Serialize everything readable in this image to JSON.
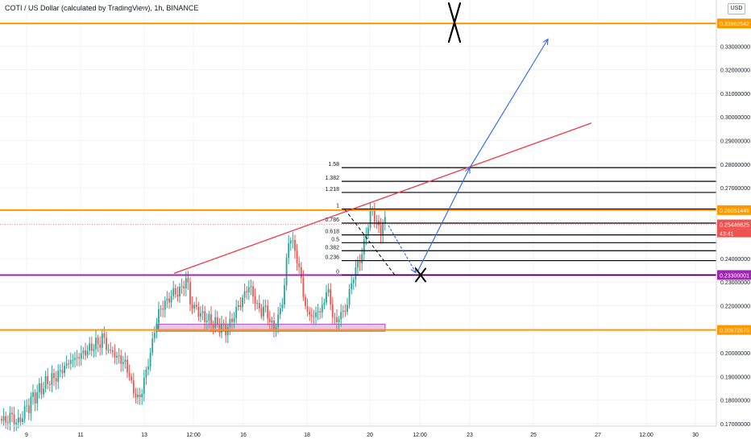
{
  "header": {
    "symbol_title": "COTI / US Dollar (calculated by TradingView), 1h, BINANCE",
    "currency_button": "USD"
  },
  "colors": {
    "up_candle": "#26a69a",
    "down_candle": "#ef5350",
    "support_orange": "#ff9800",
    "level_purple": "#9c27b0",
    "zone_fill": "#e1bee7",
    "trend_red": "#f23645",
    "arrow_blue": "#2962ff",
    "fib_black": "#000000"
  },
  "chart_data": {
    "type": "candlestick",
    "title": "COTI / US Dollar (calculated by TradingView), 1h, BINANCE",
    "xlabel": "",
    "ylabel": "",
    "ylim": [
      0.168,
      0.345
    ],
    "x_ticks": [
      "9",
      "11",
      "13",
      "12:00",
      "16",
      "18",
      "20",
      "12:00",
      "23",
      "25",
      "27",
      "12:00",
      "30"
    ],
    "y_ticks": [
      0.17,
      0.18,
      0.19,
      0.2,
      0.22,
      0.23,
      0.24,
      0.27,
      0.28,
      0.29,
      0.3,
      0.31,
      0.32,
      0.33
    ],
    "y_tick_labels": [
      "0.17000000",
      "0.18000000",
      "0.19000000",
      "0.20000000",
      "0.22000000",
      "0.23000000",
      "0.24000000",
      "0.27000000",
      "0.28000000",
      "0.29000000",
      "0.30000000",
      "0.31000000",
      "0.32000000",
      "0.33000000"
    ],
    "close_path": [
      [
        0,
        0.172
      ],
      [
        8,
        0.171
      ],
      [
        14,
        0.174
      ],
      [
        20,
        0.17
      ],
      [
        28,
        0.173
      ],
      [
        33,
        0.178
      ],
      [
        36,
        0.176
      ],
      [
        40,
        0.183
      ],
      [
        44,
        0.18
      ],
      [
        48,
        0.186
      ],
      [
        52,
        0.183
      ],
      [
        56,
        0.189
      ],
      [
        60,
        0.186
      ],
      [
        64,
        0.191
      ],
      [
        68,
        0.187
      ],
      [
        72,
        0.193
      ],
      [
        76,
        0.19
      ],
      [
        80,
        0.196
      ],
      [
        84,
        0.193
      ],
      [
        88,
        0.199
      ],
      [
        92,
        0.195
      ],
      [
        96,
        0.2
      ],
      [
        100,
        0.197
      ],
      [
        104,
        0.202
      ],
      [
        108,
        0.199
      ],
      [
        112,
        0.204
      ],
      [
        116,
        0.201
      ],
      [
        120,
        0.206
      ],
      [
        124,
        0.203
      ],
      [
        128,
        0.208
      ],
      [
        132,
        0.203
      ],
      [
        136,
        0.199
      ],
      [
        140,
        0.202
      ],
      [
        144,
        0.196
      ],
      [
        148,
        0.2
      ],
      [
        152,
        0.194
      ],
      [
        156,
        0.197
      ],
      [
        160,
        0.19
      ],
      [
        164,
        0.186
      ],
      [
        168,
        0.182
      ],
      [
        172,
        0.18
      ],
      [
        176,
        0.184
      ],
      [
        180,
        0.19
      ],
      [
        184,
        0.196
      ],
      [
        188,
        0.202
      ],
      [
        192,
        0.21
      ],
      [
        196,
        0.216
      ],
      [
        200,
        0.219
      ],
      [
        204,
        0.221
      ],
      [
        208,
        0.222
      ],
      [
        212,
        0.224
      ],
      [
        216,
        0.226
      ],
      [
        220,
        0.225
      ],
      [
        224,
        0.227
      ],
      [
        228,
        0.229
      ],
      [
        232,
        0.232
      ],
      [
        236,
        0.222
      ],
      [
        240,
        0.218
      ],
      [
        244,
        0.22
      ],
      [
        248,
        0.215
      ],
      [
        252,
        0.217
      ],
      [
        256,
        0.213
      ],
      [
        260,
        0.215
      ],
      [
        264,
        0.211
      ],
      [
        268,
        0.214
      ],
      [
        272,
        0.21
      ],
      [
        276,
        0.212
      ],
      [
        280,
        0.209
      ],
      [
        284,
        0.212
      ],
      [
        288,
        0.214
      ],
      [
        292,
        0.217
      ],
      [
        296,
        0.22
      ],
      [
        300,
        0.222
      ],
      [
        304,
        0.225
      ],
      [
        308,
        0.229
      ],
      [
        312,
        0.226
      ],
      [
        316,
        0.223
      ],
      [
        320,
        0.219
      ],
      [
        324,
        0.217
      ],
      [
        328,
        0.22
      ],
      [
        332,
        0.216
      ],
      [
        336,
        0.213
      ],
      [
        340,
        0.21
      ],
      [
        344,
        0.214
      ],
      [
        348,
        0.218
      ],
      [
        352,
        0.225
      ],
      [
        356,
        0.24
      ],
      [
        359,
        0.25
      ],
      [
        362,
        0.248
      ],
      [
        366,
        0.243
      ],
      [
        370,
        0.238
      ],
      [
        374,
        0.23
      ],
      [
        378,
        0.222
      ],
      [
        382,
        0.215
      ],
      [
        386,
        0.218
      ],
      [
        390,
        0.213
      ],
      [
        394,
        0.22
      ],
      [
        398,
        0.216
      ],
      [
        402,
        0.222
      ],
      [
        406,
        0.228
      ],
      [
        410,
        0.221
      ],
      [
        414,
        0.215
      ],
      [
        418,
        0.212
      ],
      [
        422,
        0.218
      ],
      [
        426,
        0.216
      ],
      [
        430,
        0.22
      ],
      [
        434,
        0.226
      ],
      [
        438,
        0.232
      ],
      [
        442,
        0.236
      ],
      [
        446,
        0.239
      ],
      [
        450,
        0.243
      ],
      [
        454,
        0.25
      ],
      [
        458,
        0.256
      ],
      [
        461,
        0.261
      ],
      [
        464,
        0.258
      ],
      [
        468,
        0.255
      ],
      [
        472,
        0.25
      ],
      [
        476,
        0.257
      ],
      [
        480,
        0.2545
      ]
    ],
    "fibonacci": {
      "levels": [
        "1.58",
        "1.382",
        "1.218",
        "1",
        "0.786",
        "0.618",
        "0.5",
        "0.382",
        "0.236",
        "0"
      ],
      "prices": [
        0.2785,
        0.2727,
        0.268,
        0.261,
        0.255,
        0.25,
        0.2467,
        0.2433,
        0.2391,
        0.233
      ]
    },
    "horizontal_levels": [
      {
        "price": 0.33962542,
        "label": "0.33962542",
        "style": "orange"
      },
      {
        "price": 0.26051449,
        "label": "0.26051449",
        "style": "orange"
      },
      {
        "price": 0.23300001,
        "label": "0.23300001",
        "style": "purple"
      },
      {
        "price": 0.20972675,
        "label": "0.20972675",
        "style": "orange"
      }
    ],
    "current_price": {
      "price": 0.25446625,
      "label": "0.25446625",
      "countdown": "43:41"
    },
    "consolidation_zone": {
      "price_low": 0.2092,
      "price_high": 0.2121
    },
    "trendline": [
      [
        0.2337
      ],
      [
        0.2974
      ]
    ],
    "projection_path_prices": [
      0.254,
      0.233,
      0.2785,
      0.333
    ],
    "invalidation_marks": [
      "top-right",
      "at-0.233-level"
    ]
  }
}
